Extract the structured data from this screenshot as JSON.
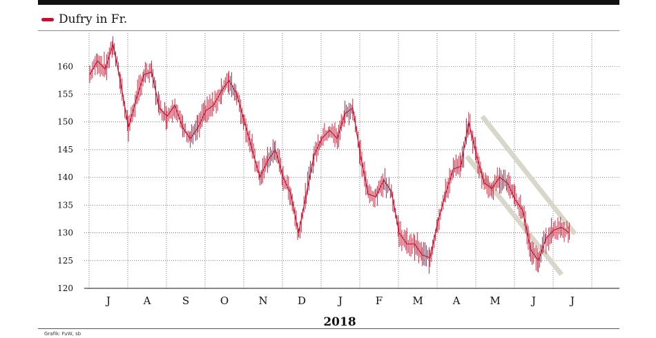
{
  "chart_data": {
    "type": "line",
    "title": "",
    "xlabel": "2018",
    "ylabel": "",
    "ylim": [
      120,
      166
    ],
    "yticks": [
      120,
      125,
      130,
      135,
      140,
      145,
      150,
      155,
      160
    ],
    "xtick_labels": [
      "J",
      "A",
      "S",
      "O",
      "N",
      "D",
      "J",
      "F",
      "M",
      "A",
      "M",
      "J",
      "J"
    ],
    "grid": true,
    "legend": "top-left",
    "series": [
      {
        "name": "Dufry in Fr.",
        "color": "#c8102e",
        "x": [
          0,
          0.2,
          0.4,
          0.6,
          0.8,
          1.0,
          1.2,
          1.4,
          1.6,
          1.8,
          2.0,
          2.2,
          2.4,
          2.6,
          2.8,
          3.0,
          3.2,
          3.4,
          3.6,
          3.8,
          4.0,
          4.2,
          4.4,
          4.6,
          4.8,
          5.0,
          5.2,
          5.4,
          5.6,
          5.8,
          6.0,
          6.2,
          6.4,
          6.6,
          6.8,
          7.0,
          7.2,
          7.4,
          7.6,
          7.8,
          8.0,
          8.2,
          8.4,
          8.6,
          8.8,
          9.0,
          9.2,
          9.4,
          9.6,
          9.8,
          10.0,
          10.2,
          10.4,
          10.6,
          10.8,
          11.0,
          11.2,
          11.4,
          11.6,
          11.8,
          12.0,
          12.2,
          12.4
        ],
        "values": [
          158.5,
          161,
          159.5,
          164,
          157,
          149,
          154,
          158.5,
          159,
          152.5,
          151,
          153,
          149,
          147,
          149,
          152,
          153,
          155.5,
          157.5,
          155,
          150,
          145,
          140,
          143,
          145,
          140,
          137,
          130,
          137,
          144,
          147,
          148.5,
          147,
          151.5,
          152.5,
          144,
          137,
          136.5,
          139.5,
          137.5,
          130,
          128,
          128,
          126,
          125.5,
          132,
          137,
          141.5,
          142,
          150,
          144,
          139,
          138,
          140,
          139,
          136,
          134,
          127,
          125,
          129,
          130.5,
          131,
          130
        ]
      }
    ],
    "annotations": [
      {
        "type": "channel-line",
        "x": [
          9.75,
          12.2
        ],
        "values": [
          143.8,
          122.5
        ]
      },
      {
        "type": "channel-line",
        "x": [
          10.15,
          12.55
        ],
        "values": [
          151,
          129.8
        ]
      }
    ]
  },
  "credit": "Grafik: FuW, sb"
}
